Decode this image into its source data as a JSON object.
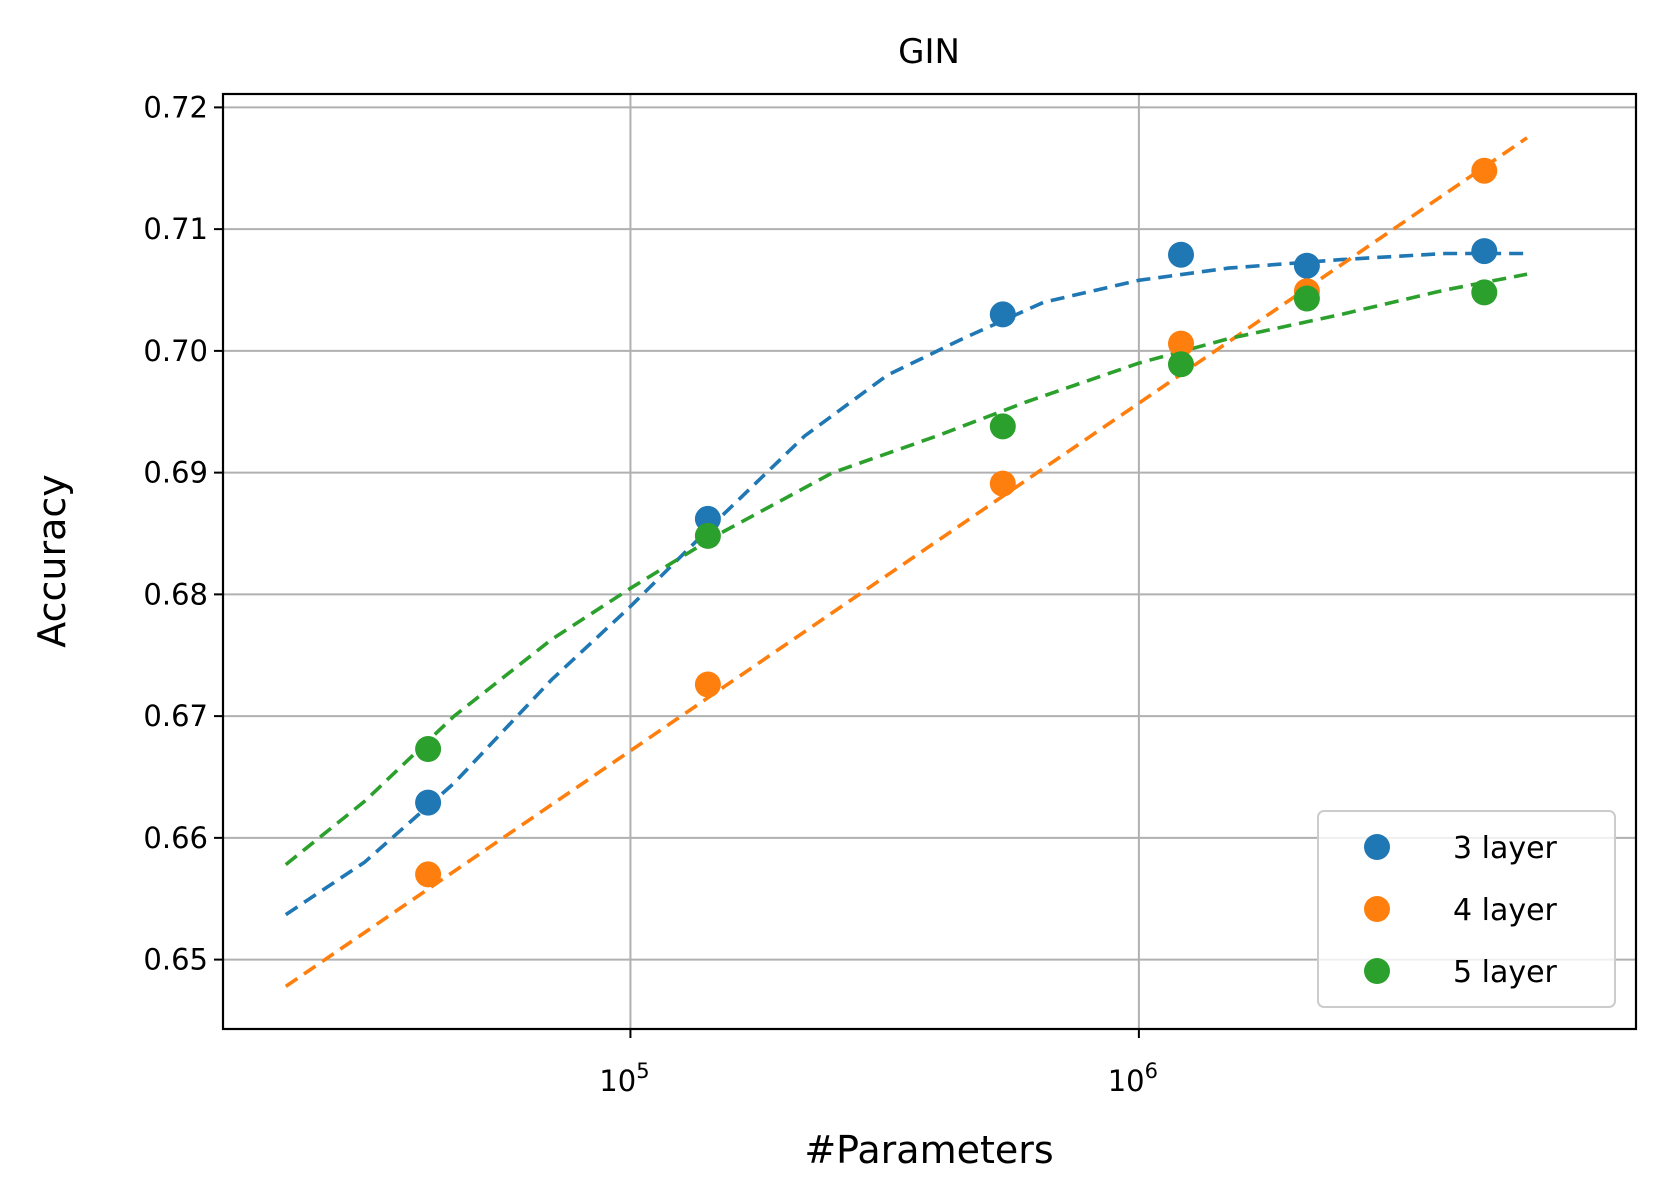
{
  "chart_data": {
    "type": "scatter",
    "title": "GIN",
    "xlabel": "#Parameters",
    "ylabel": "Accuracy",
    "xscale": "log",
    "xlim": [
      15800,
      9500000
    ],
    "ylim": [
      0.6443,
      0.7211
    ],
    "x_ticks": [
      {
        "value": 100000,
        "base": "10",
        "exp": "5"
      },
      {
        "value": 1000000,
        "base": "10",
        "exp": "6"
      }
    ],
    "y_ticks": [
      {
        "value": 0.65,
        "label": "0.65"
      },
      {
        "value": 0.66,
        "label": "0.66"
      },
      {
        "value": 0.67,
        "label": "0.67"
      },
      {
        "value": 0.68,
        "label": "0.68"
      },
      {
        "value": 0.69,
        "label": "0.69"
      },
      {
        "value": 0.7,
        "label": "0.70"
      },
      {
        "value": 0.71,
        "label": "0.71"
      },
      {
        "value": 0.72,
        "label": "0.72"
      }
    ],
    "grid": true,
    "legend_position": "lower-right",
    "series": [
      {
        "name": "3 layer",
        "color": "#1f77b4",
        "points": [
          {
            "x": 40000,
            "y": 0.6629
          },
          {
            "x": 142000,
            "y": 0.6862
          },
          {
            "x": 540000,
            "y": 0.703
          },
          {
            "x": 1210000,
            "y": 0.7079
          },
          {
            "x": 2140000,
            "y": 0.707
          },
          {
            "x": 4780000,
            "y": 0.7082
          }
        ],
        "fit": [
          {
            "x": 21000,
            "y": 0.6537
          },
          {
            "x": 30000,
            "y": 0.658
          },
          {
            "x": 45000,
            "y": 0.6645
          },
          {
            "x": 70000,
            "y": 0.673
          },
          {
            "x": 100000,
            "y": 0.679
          },
          {
            "x": 150000,
            "y": 0.6863
          },
          {
            "x": 220000,
            "y": 0.693
          },
          {
            "x": 320000,
            "y": 0.698
          },
          {
            "x": 450000,
            "y": 0.701
          },
          {
            "x": 650000,
            "y": 0.704
          },
          {
            "x": 1000000,
            "y": 0.7058
          },
          {
            "x": 1500000,
            "y": 0.7068
          },
          {
            "x": 2500000,
            "y": 0.7075
          },
          {
            "x": 4000000,
            "y": 0.708
          },
          {
            "x": 5800000,
            "y": 0.708
          }
        ]
      },
      {
        "name": "4 layer",
        "color": "#ff7f0e",
        "points": [
          {
            "x": 40000,
            "y": 0.657
          },
          {
            "x": 142000,
            "y": 0.6726
          },
          {
            "x": 540000,
            "y": 0.6891
          },
          {
            "x": 1210000,
            "y": 0.7006
          },
          {
            "x": 2140000,
            "y": 0.7049
          },
          {
            "x": 4780000,
            "y": 0.7148
          }
        ],
        "fit": [
          {
            "x": 21000,
            "y": 0.6478
          },
          {
            "x": 5800000,
            "y": 0.7175
          }
        ]
      },
      {
        "name": "5 layer",
        "color": "#2ca02c",
        "points": [
          {
            "x": 40000,
            "y": 0.6673
          },
          {
            "x": 142000,
            "y": 0.6848
          },
          {
            "x": 540000,
            "y": 0.6938
          },
          {
            "x": 1210000,
            "y": 0.6989
          },
          {
            "x": 2140000,
            "y": 0.7043
          },
          {
            "x": 4780000,
            "y": 0.7048
          }
        ],
        "fit": [
          {
            "x": 21000,
            "y": 0.6578
          },
          {
            "x": 30000,
            "y": 0.663
          },
          {
            "x": 45000,
            "y": 0.67
          },
          {
            "x": 70000,
            "y": 0.6763
          },
          {
            "x": 100000,
            "y": 0.6805
          },
          {
            "x": 150000,
            "y": 0.685
          },
          {
            "x": 250000,
            "y": 0.69
          },
          {
            "x": 400000,
            "y": 0.693
          },
          {
            "x": 600000,
            "y": 0.6958
          },
          {
            "x": 1000000,
            "y": 0.699
          },
          {
            "x": 1500000,
            "y": 0.701
          },
          {
            "x": 2500000,
            "y": 0.703
          },
          {
            "x": 4000000,
            "y": 0.705
          },
          {
            "x": 5800000,
            "y": 0.7063
          }
        ]
      }
    ]
  }
}
